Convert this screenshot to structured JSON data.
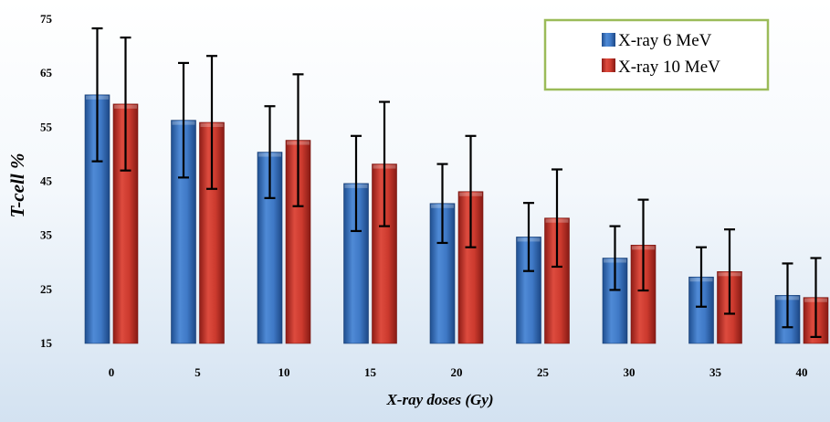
{
  "chart_data": {
    "type": "bar",
    "title": "",
    "xlabel": "X-ray doses (Gy)",
    "ylabel": "T-cell %",
    "ylim": [
      15,
      75
    ],
    "yticks": [
      15,
      25,
      35,
      45,
      55,
      65,
      75
    ],
    "categories": [
      "0",
      "5",
      "10",
      "15",
      "20",
      "25",
      "30",
      "35",
      "40"
    ],
    "series": [
      {
        "name": "X-ray 6 MeV",
        "color": "#3a6fc0",
        "values": [
          61,
          56.3,
          50.4,
          44.6,
          40.9,
          34.7,
          30.8,
          27.3,
          23.9
        ],
        "errors": [
          12.3,
          10.6,
          8.5,
          8.8,
          7.3,
          6.3,
          5.9,
          5.5,
          5.9
        ]
      },
      {
        "name": "X-ray 10 MeV",
        "color": "#c0392b",
        "values": [
          59.3,
          55.9,
          52.6,
          48.2,
          43.1,
          38.2,
          33.2,
          28.3,
          23.5
        ],
        "errors": [
          12.3,
          12.3,
          12.2,
          11.5,
          10.3,
          9.0,
          8.4,
          7.8,
          7.3
        ]
      }
    ],
    "grid": false,
    "legend_position": "top-right"
  }
}
